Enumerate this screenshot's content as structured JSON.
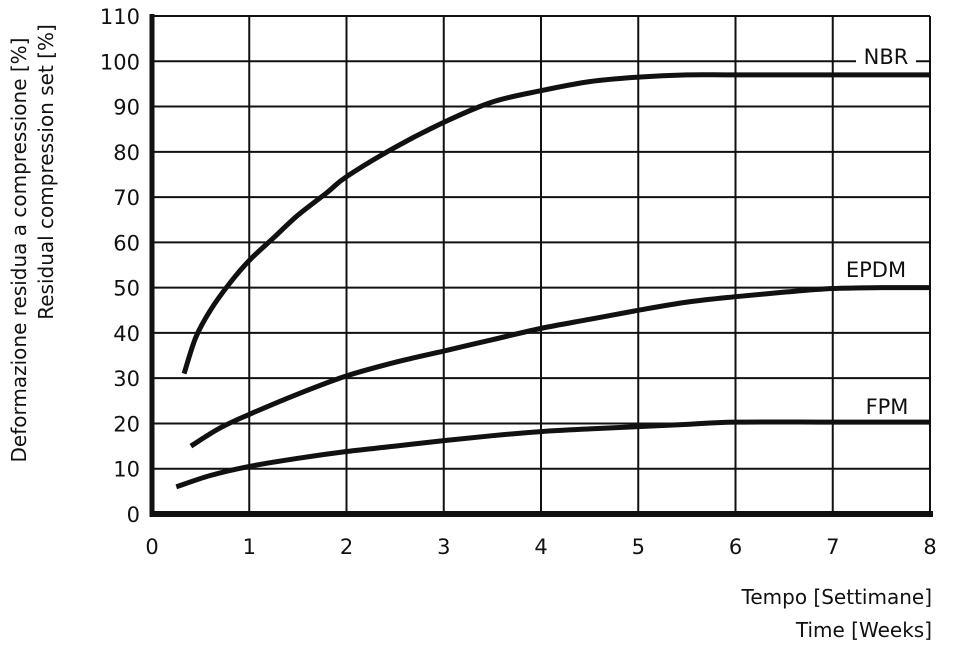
{
  "chart_data": {
    "type": "line",
    "title": "",
    "xlabel": [
      "Tempo [Settimane]",
      "Time [Weeks]"
    ],
    "ylabel": [
      "Deformazione residua a compressione [%]",
      "Residual compression set [%]"
    ],
    "xlim": [
      0,
      8
    ],
    "ylim": [
      0,
      110
    ],
    "xticks": [
      0,
      1,
      2,
      3,
      4,
      5,
      6,
      7,
      8
    ],
    "yticks": [
      0,
      10,
      20,
      30,
      40,
      50,
      60,
      70,
      80,
      90,
      100,
      110
    ],
    "grid": true,
    "series": [
      {
        "name": "NBR",
        "x": [
          0.33,
          0.45,
          0.6,
          0.8,
          1.0,
          1.25,
          1.5,
          1.8,
          2.0,
          2.5,
          3.0,
          3.5,
          4.0,
          4.5,
          5.0,
          5.5,
          6.0,
          7.0,
          8.0
        ],
        "y": [
          31,
          39,
          45,
          51,
          56,
          61,
          66,
          71,
          74.5,
          81,
          86.5,
          91,
          93.5,
          95.5,
          96.5,
          97,
          97,
          97,
          97
        ]
      },
      {
        "name": "EPDM",
        "x": [
          0.4,
          0.7,
          1.0,
          1.5,
          2.0,
          2.5,
          3.0,
          3.5,
          4.0,
          4.5,
          5.0,
          5.5,
          6.0,
          6.5,
          7.0,
          7.5,
          8.0
        ],
        "y": [
          15,
          19,
          22,
          26.5,
          30.5,
          33.5,
          36,
          38.5,
          41,
          43,
          45,
          46.8,
          48,
          49,
          49.8,
          50,
          50
        ]
      },
      {
        "name": "FPM",
        "x": [
          0.25,
          0.6,
          1.0,
          1.5,
          2.0,
          2.5,
          3.0,
          3.5,
          4.0,
          4.5,
          5.0,
          5.5,
          6.0,
          7.0,
          8.0
        ],
        "y": [
          6,
          8.5,
          10.5,
          12.3,
          13.8,
          15,
          16.2,
          17.3,
          18.2,
          18.8,
          19.3,
          19.8,
          20.3,
          20.3,
          20.3
        ]
      }
    ]
  }
}
